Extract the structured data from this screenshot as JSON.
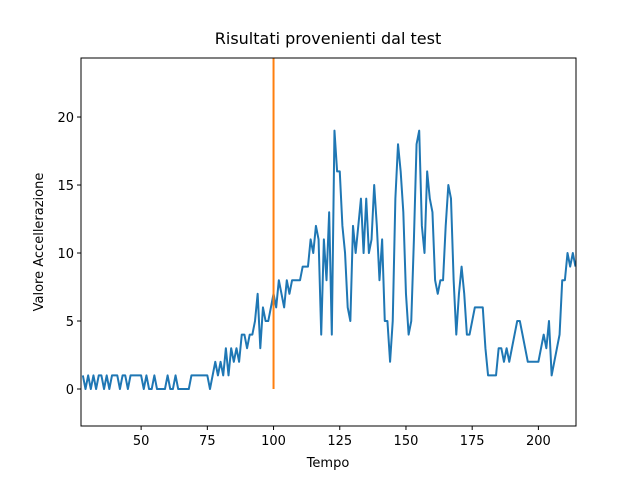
{
  "chart_data": {
    "type": "line",
    "title": "Risultati provenienti dal test",
    "xlabel": "Tempo",
    "ylabel": "Valore Accellerazione",
    "xlim": [
      27.3,
      214.2
    ],
    "ylim": [
      -2.72,
      24.34
    ],
    "xticks": [
      50,
      75,
      100,
      125,
      150,
      175,
      200
    ],
    "yticks": [
      0,
      5,
      10,
      15,
      20
    ],
    "grid": false,
    "series": [
      {
        "color": "#1f77b4",
        "x": [
          28,
          29,
          30,
          31,
          32,
          33,
          34,
          35,
          36,
          37,
          38,
          39,
          40,
          41,
          42,
          43,
          44,
          45,
          46,
          47,
          48,
          49,
          50,
          51,
          52,
          53,
          54,
          55,
          56,
          57,
          58,
          59,
          60,
          61,
          62,
          63,
          64,
          65,
          66,
          67,
          68,
          69,
          70,
          71,
          72,
          73,
          74,
          75,
          76,
          77,
          78,
          79,
          80,
          81,
          82,
          83,
          84,
          85,
          86,
          87,
          88,
          89,
          90,
          91,
          92,
          93,
          94,
          95,
          96,
          97,
          98,
          99,
          100,
          101,
          102,
          103,
          104,
          105,
          106,
          107,
          108,
          109,
          110,
          111,
          112,
          113,
          114,
          115,
          116,
          117,
          118,
          119,
          120,
          121,
          122,
          123,
          124,
          125,
          126,
          127,
          128,
          129,
          130,
          131,
          132,
          133,
          134,
          135,
          136,
          137,
          138,
          139,
          140,
          141,
          142,
          143,
          144,
          145,
          146,
          147,
          148,
          149,
          150,
          151,
          152,
          153,
          154,
          155,
          156,
          157,
          158,
          159,
          160,
          161,
          162,
          163,
          164,
          165,
          166,
          167,
          168,
          169,
          170,
          171,
          172,
          173,
          174,
          175,
          176,
          177,
          178,
          179,
          180,
          181,
          182,
          183,
          184,
          185,
          186,
          187,
          188,
          189,
          190,
          191,
          192,
          193,
          194,
          195,
          196,
          197,
          198,
          199,
          200,
          201,
          202,
          203,
          204,
          205,
          206,
          207,
          208,
          209,
          210,
          211,
          212,
          213,
          214
        ],
        "values": [
          1,
          0,
          1,
          0,
          1,
          0,
          1,
          1,
          0,
          1,
          0,
          1,
          1,
          1,
          0,
          1,
          1,
          0,
          1,
          1,
          1,
          1,
          1,
          0,
          1,
          0,
          0,
          1,
          0,
          0,
          0,
          0,
          1,
          0,
          0,
          1,
          0,
          0,
          0,
          0,
          0,
          1,
          1,
          1,
          1,
          1,
          1,
          1,
          0,
          1,
          2,
          1,
          2,
          1,
          3,
          1,
          3,
          2,
          3,
          2,
          4,
          4,
          3,
          4,
          4,
          5,
          7,
          3,
          6,
          5,
          5,
          6,
          7,
          6,
          8,
          7,
          6,
          8,
          7,
          8,
          8,
          8,
          8,
          9,
          9,
          9,
          11,
          10,
          12,
          11,
          4,
          11,
          8,
          13,
          4,
          19,
          16,
          16,
          12,
          10,
          6,
          5,
          12,
          10,
          12,
          14,
          10,
          14,
          10,
          11,
          15,
          12,
          8,
          11,
          5,
          5,
          2,
          5,
          14,
          18,
          16,
          13,
          7,
          4,
          5,
          11,
          18,
          19,
          12,
          10,
          16,
          14,
          13,
          8,
          7,
          8,
          8,
          12,
          15,
          14,
          8,
          4,
          7,
          9,
          7,
          4,
          4,
          5,
          6,
          6,
          6,
          6,
          3,
          1,
          1,
          1,
          1,
          3,
          3,
          2,
          3,
          2,
          3,
          4,
          5,
          5,
          4,
          3,
          2,
          2,
          2,
          2,
          2,
          3,
          4,
          3,
          5,
          1,
          2,
          3,
          4,
          8,
          8,
          10,
          9,
          10,
          9
        ]
      },
      {
        "color": "#ff7f0e",
        "x": [
          100,
          100
        ],
        "values": [
          0,
          24.3
        ]
      }
    ]
  }
}
